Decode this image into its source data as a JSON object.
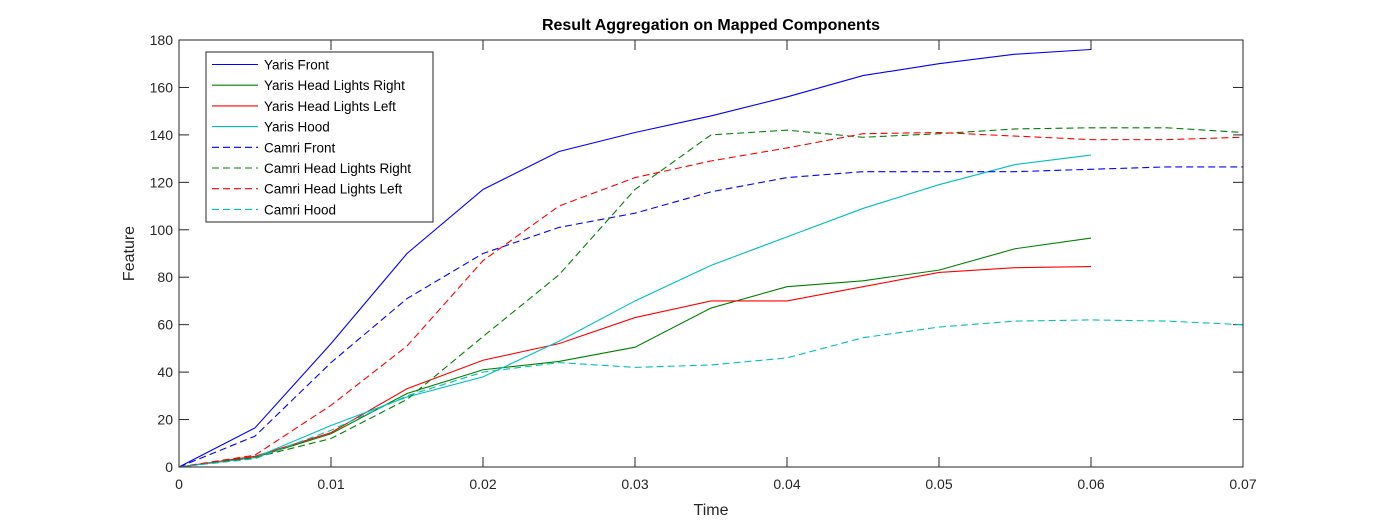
{
  "chart_data": {
    "type": "line",
    "title": "Result Aggregation on Mapped Components",
    "xlabel": "Time",
    "ylabel": "Feature",
    "xlim": [
      0,
      0.07
    ],
    "ylim": [
      0,
      180
    ],
    "xticks": [
      0,
      0.01,
      0.02,
      0.03,
      0.04,
      0.05,
      0.06,
      0.07
    ],
    "xtick_labels": [
      "0",
      "0.01",
      "0.02",
      "0.03",
      "0.04",
      "0.05",
      "0.06",
      "0.07"
    ],
    "yticks": [
      0,
      20,
      40,
      60,
      80,
      100,
      120,
      140,
      160,
      180
    ],
    "ytick_labels": [
      "0",
      "20",
      "40",
      "60",
      "80",
      "100",
      "120",
      "140",
      "160",
      "180"
    ],
    "grid": false,
    "legend_position": "top-left",
    "series": [
      {
        "name": "Yaris Front",
        "color": "#0000ff",
        "dash": "solid",
        "x": [
          0,
          0.005,
          0.01,
          0.015,
          0.02,
          0.025,
          0.03,
          0.035,
          0.04,
          0.045,
          0.05,
          0.055,
          0.06
        ],
        "y": [
          0,
          16.5,
          52,
          90,
          117,
          133,
          141,
          148,
          156,
          165,
          170,
          174,
          176
        ]
      },
      {
        "name": "Yaris Head Lights Right",
        "color": "#008000",
        "dash": "solid",
        "x": [
          0,
          0.005,
          0.01,
          0.015,
          0.02,
          0.025,
          0.03,
          0.035,
          0.04,
          0.045,
          0.05,
          0.055,
          0.06
        ],
        "y": [
          0,
          4,
          14,
          31,
          41,
          44.5,
          50.5,
          67,
          76,
          78.5,
          83,
          92,
          96.5
        ]
      },
      {
        "name": "Yaris Head Lights Left",
        "color": "#ff0000",
        "dash": "solid",
        "x": [
          0,
          0.005,
          0.01,
          0.015,
          0.02,
          0.025,
          0.03,
          0.035,
          0.04,
          0.045,
          0.05,
          0.055,
          0.06
        ],
        "y": [
          0,
          4.5,
          14.5,
          33,
          45,
          52,
          63,
          70,
          70,
          76,
          82,
          84,
          84.5
        ]
      },
      {
        "name": "Yaris Hood",
        "color": "#00bfbf",
        "dash": "solid",
        "x": [
          0,
          0.005,
          0.01,
          0.015,
          0.02,
          0.025,
          0.03,
          0.035,
          0.04,
          0.045,
          0.05,
          0.055,
          0.06
        ],
        "y": [
          0,
          4,
          17.5,
          29.5,
          38,
          53,
          70,
          85,
          97,
          109,
          119,
          127.5,
          131.5
        ]
      },
      {
        "name": "Camri Front",
        "color": "#0000ff",
        "dash": "dashed",
        "x": [
          0,
          0.005,
          0.01,
          0.015,
          0.02,
          0.025,
          0.03,
          0.035,
          0.04,
          0.045,
          0.05,
          0.055,
          0.06,
          0.065,
          0.07
        ],
        "y": [
          0,
          13,
          44,
          71,
          90,
          101,
          107,
          116,
          122,
          124.5,
          124.5,
          124.5,
          125.5,
          126.5,
          126.5
        ]
      },
      {
        "name": "Camri Head Lights Right",
        "color": "#008000",
        "dash": "dashed",
        "x": [
          0,
          0.005,
          0.01,
          0.015,
          0.02,
          0.025,
          0.03,
          0.035,
          0.04,
          0.045,
          0.05,
          0.055,
          0.06,
          0.065,
          0.07
        ],
        "y": [
          0,
          4,
          12,
          28.5,
          55,
          81,
          117,
          140,
          142,
          139,
          140.5,
          142.5,
          143,
          143,
          141
        ]
      },
      {
        "name": "Camri Head Lights Left",
        "color": "#ff0000",
        "dash": "dashed",
        "x": [
          0,
          0.005,
          0.01,
          0.015,
          0.02,
          0.025,
          0.03,
          0.035,
          0.04,
          0.045,
          0.05,
          0.055,
          0.06,
          0.065,
          0.07
        ],
        "y": [
          0,
          5,
          26,
          51,
          87,
          110,
          122,
          129,
          134.5,
          140.5,
          141,
          139.5,
          138,
          138,
          139
        ]
      },
      {
        "name": "Camri Hood",
        "color": "#00bfbf",
        "dash": "dashed",
        "x": [
          0,
          0.005,
          0.01,
          0.015,
          0.02,
          0.025,
          0.03,
          0.035,
          0.04,
          0.045,
          0.05,
          0.055,
          0.06,
          0.065,
          0.07
        ],
        "y": [
          0,
          3.5,
          15.5,
          30,
          40,
          44,
          42,
          43,
          46,
          54.5,
          59,
          61.5,
          62,
          61.5,
          60
        ]
      }
    ]
  }
}
